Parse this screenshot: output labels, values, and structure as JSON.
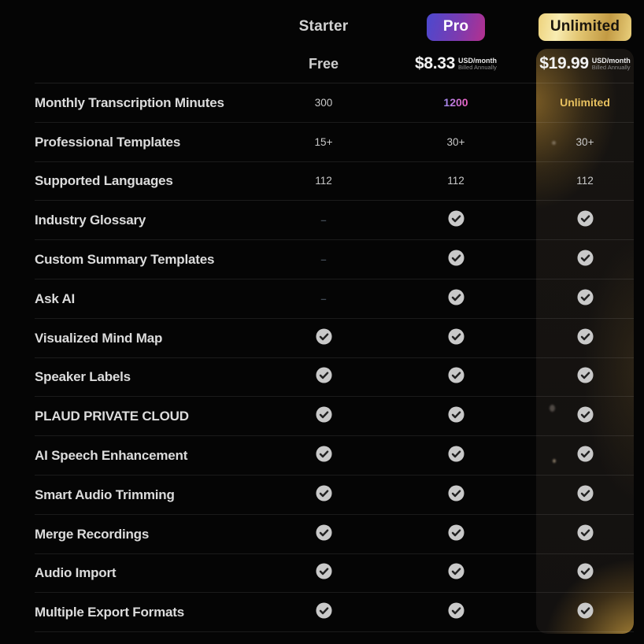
{
  "header": {
    "plans": [
      {
        "id": "starter",
        "name": "Starter",
        "price": "Free"
      },
      {
        "id": "pro",
        "name": "Pro",
        "price": "$8.33",
        "unit": "USD/month",
        "billing": "Billed Annually"
      },
      {
        "id": "unlimited",
        "name": "Unlimited",
        "price": "$19.99",
        "unit": "USD/month",
        "billing": "Billed Annually"
      }
    ]
  },
  "features": [
    {
      "label": "Monthly Transcription Minutes",
      "starter": {
        "type": "text",
        "value": "300"
      },
      "pro": {
        "type": "text",
        "value": "1200",
        "style": "gradient"
      },
      "unlimited": {
        "type": "text",
        "value": "Unlimited",
        "style": "gold"
      }
    },
    {
      "label": "Professional Templates",
      "starter": {
        "type": "text",
        "value": "15+"
      },
      "pro": {
        "type": "text",
        "value": "30+"
      },
      "unlimited": {
        "type": "text",
        "value": "30+"
      }
    },
    {
      "label": "Supported Languages",
      "starter": {
        "type": "text",
        "value": "112"
      },
      "pro": {
        "type": "text",
        "value": "112"
      },
      "unlimited": {
        "type": "text",
        "value": "112"
      }
    },
    {
      "label": "Industry Glossary",
      "starter": {
        "type": "dash"
      },
      "pro": {
        "type": "check"
      },
      "unlimited": {
        "type": "check"
      }
    },
    {
      "label": "Custom Summary Templates",
      "starter": {
        "type": "dash"
      },
      "pro": {
        "type": "check"
      },
      "unlimited": {
        "type": "check"
      }
    },
    {
      "label": "Ask AI",
      "starter": {
        "type": "dash"
      },
      "pro": {
        "type": "check"
      },
      "unlimited": {
        "type": "check"
      }
    },
    {
      "label": "Visualized Mind Map",
      "starter": {
        "type": "check"
      },
      "pro": {
        "type": "check"
      },
      "unlimited": {
        "type": "check"
      }
    },
    {
      "label": "Speaker Labels",
      "starter": {
        "type": "check"
      },
      "pro": {
        "type": "check"
      },
      "unlimited": {
        "type": "check"
      }
    },
    {
      "label": "PLAUD PRIVATE CLOUD",
      "starter": {
        "type": "check"
      },
      "pro": {
        "type": "check"
      },
      "unlimited": {
        "type": "check"
      }
    },
    {
      "label": "AI Speech Enhancement",
      "starter": {
        "type": "check"
      },
      "pro": {
        "type": "check"
      },
      "unlimited": {
        "type": "check"
      }
    },
    {
      "label": "Smart Audio Trimming",
      "starter": {
        "type": "check"
      },
      "pro": {
        "type": "check"
      },
      "unlimited": {
        "type": "check"
      }
    },
    {
      "label": "Merge Recordings",
      "starter": {
        "type": "check"
      },
      "pro": {
        "type": "check"
      },
      "unlimited": {
        "type": "check"
      }
    },
    {
      "label": "Audio Import",
      "starter": {
        "type": "check"
      },
      "pro": {
        "type": "check"
      },
      "unlimited": {
        "type": "check"
      }
    },
    {
      "label": "Multiple Export Formats",
      "starter": {
        "type": "check"
      },
      "pro": {
        "type": "check"
      },
      "unlimited": {
        "type": "check"
      }
    }
  ],
  "colors": {
    "background": "#050505",
    "pro_badge_from": "#4b49cf",
    "pro_badge_to": "#b5308e",
    "unlimited_gold": "#e7c05f",
    "value_gradient_from": "#9d8bef",
    "value_gradient_to": "#ef5fc0",
    "check_circle": "#c9c9c9",
    "check_mark": "#222222"
  },
  "icons": {
    "check": "check-icon",
    "dash": "dash-icon"
  }
}
